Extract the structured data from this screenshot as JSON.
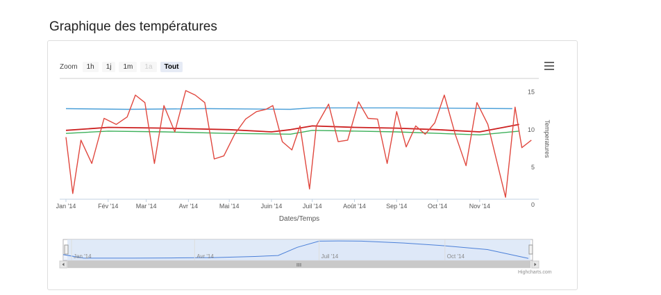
{
  "page": {
    "title": "Graphique des températures"
  },
  "toolbar": {
    "zoom_label": "Zoom",
    "buttons": [
      {
        "label": "1h",
        "state": "normal"
      },
      {
        "label": "1j",
        "state": "normal"
      },
      {
        "label": "1m",
        "state": "normal"
      },
      {
        "label": "1a",
        "state": "disabled"
      },
      {
        "label": "Tout",
        "state": "active"
      }
    ],
    "menu_icon": "hamburger-menu-icon"
  },
  "chart_data": {
    "type": "line",
    "title": "",
    "xlabel": "Dates/Temps",
    "ylabel": "Temperatures",
    "x_range": [
      "2014-01-01",
      "2014-11-30"
    ],
    "ylim": [
      0,
      17
    ],
    "y_ticks": [
      0,
      5,
      10,
      15
    ],
    "x_ticks": [
      {
        "date": "2014-01-01",
        "label": "Jan '14"
      },
      {
        "date": "2014-02-01",
        "label": "Fév '14"
      },
      {
        "date": "2014-03-01",
        "label": "Mar '14"
      },
      {
        "date": "2014-04-01",
        "label": "Avr '14"
      },
      {
        "date": "2014-05-01",
        "label": "Mai '14"
      },
      {
        "date": "2014-06-01",
        "label": "Juin '14"
      },
      {
        "date": "2014-07-01",
        "label": "Juil '14"
      },
      {
        "date": "2014-08-01",
        "label": "Août '14"
      },
      {
        "date": "2014-09-01",
        "label": "Sep '14"
      },
      {
        "date": "2014-10-01",
        "label": "Oct '14"
      },
      {
        "date": "2014-11-01",
        "label": "Nov '14"
      }
    ],
    "grid": false,
    "legend": "none",
    "series": [
      {
        "color": "#4a9fd8",
        "points": [
          [
            "2014-01-01",
            12.8
          ],
          [
            "2014-02-15",
            12.7
          ],
          [
            "2014-04-15",
            12.8
          ],
          [
            "2014-06-15",
            12.7
          ],
          [
            "2014-07-01",
            12.9
          ],
          [
            "2014-09-01",
            12.9
          ],
          [
            "2014-11-25",
            12.8
          ]
        ]
      },
      {
        "color": "#cc1f1f",
        "points": [
          [
            "2014-01-01",
            9.9
          ],
          [
            "2014-02-01",
            10.3
          ],
          [
            "2014-03-15",
            10.2
          ],
          [
            "2014-05-01",
            10.0
          ],
          [
            "2014-06-01",
            9.7
          ],
          [
            "2014-06-15",
            10.0
          ],
          [
            "2014-07-01",
            10.5
          ],
          [
            "2014-08-01",
            10.3
          ],
          [
            "2014-09-01",
            10.2
          ],
          [
            "2014-10-01",
            10.0
          ],
          [
            "2014-11-01",
            9.7
          ],
          [
            "2014-11-30",
            10.7
          ]
        ]
      },
      {
        "color": "#3cb05a",
        "points": [
          [
            "2014-01-01",
            9.5
          ],
          [
            "2014-02-01",
            9.8
          ],
          [
            "2014-03-15",
            9.7
          ],
          [
            "2014-05-01",
            9.5
          ],
          [
            "2014-06-15",
            9.4
          ],
          [
            "2014-07-01",
            9.9
          ],
          [
            "2014-09-01",
            9.7
          ],
          [
            "2014-11-01",
            9.3
          ],
          [
            "2014-11-30",
            9.8
          ]
        ]
      },
      {
        "color": "#e0473e",
        "points": [
          [
            "2014-01-01",
            9.0
          ],
          [
            "2014-01-06",
            1.5
          ],
          [
            "2014-01-12",
            8.6
          ],
          [
            "2014-01-20",
            5.5
          ],
          [
            "2014-01-29",
            11.5
          ],
          [
            "2014-02-07",
            10.7
          ],
          [
            "2014-02-15",
            11.7
          ],
          [
            "2014-02-21",
            14.6
          ],
          [
            "2014-02-28",
            13.6
          ],
          [
            "2014-03-07",
            5.5
          ],
          [
            "2014-03-14",
            13.2
          ],
          [
            "2014-03-22",
            9.7
          ],
          [
            "2014-03-30",
            15.2
          ],
          [
            "2014-04-06",
            14.6
          ],
          [
            "2014-04-13",
            13.6
          ],
          [
            "2014-04-20",
            6.1
          ],
          [
            "2014-04-27",
            6.5
          ],
          [
            "2014-05-05",
            9.4
          ],
          [
            "2014-05-13",
            11.4
          ],
          [
            "2014-05-21",
            12.4
          ],
          [
            "2014-05-28",
            12.7
          ],
          [
            "2014-06-02",
            13.2
          ],
          [
            "2014-06-09",
            8.4
          ],
          [
            "2014-06-16",
            7.3
          ],
          [
            "2014-06-22",
            10.5
          ],
          [
            "2014-06-29",
            2.1
          ],
          [
            "2014-07-04",
            10.5
          ],
          [
            "2014-07-13",
            13.4
          ],
          [
            "2014-07-20",
            8.4
          ],
          [
            "2014-07-27",
            8.6
          ],
          [
            "2014-08-04",
            13.7
          ],
          [
            "2014-08-11",
            11.5
          ],
          [
            "2014-08-18",
            11.4
          ],
          [
            "2014-08-25",
            5.5
          ],
          [
            "2014-09-01",
            12.4
          ],
          [
            "2014-09-08",
            7.7
          ],
          [
            "2014-09-15",
            10.5
          ],
          [
            "2014-09-22",
            9.4
          ],
          [
            "2014-09-29",
            10.9
          ],
          [
            "2014-10-06",
            14.6
          ],
          [
            "2014-10-14",
            9.4
          ],
          [
            "2014-10-22",
            5.2
          ],
          [
            "2014-10-30",
            13.6
          ],
          [
            "2014-11-07",
            10.7
          ],
          [
            "2014-11-20",
            1.0
          ],
          [
            "2014-11-27",
            13.0
          ],
          [
            "2014-12-02",
            7.6
          ],
          [
            "2014-12-09",
            8.6
          ]
        ]
      }
    ],
    "navigator": {
      "x_ticks": [
        {
          "date": "2014-01-01",
          "label": "Jan '14"
        },
        {
          "date": "2014-04-01",
          "label": "Avr '14"
        },
        {
          "date": "2014-07-01",
          "label": "Juil '14"
        },
        {
          "date": "2014-10-01",
          "label": "Oct '14"
        }
      ],
      "color": "#4a7fd8",
      "fill": "#dbe6f7",
      "points": [
        [
          "2013-12-01",
          5.5
        ],
        [
          "2013-12-25",
          2.4
        ],
        [
          "2014-01-10",
          0.4
        ],
        [
          "2014-02-15",
          0.4
        ],
        [
          "2014-03-15",
          0.5
        ],
        [
          "2014-04-15",
          0.7
        ],
        [
          "2014-05-15",
          1.3
        ],
        [
          "2014-06-01",
          1.8
        ],
        [
          "2014-06-15",
          6.2
        ],
        [
          "2014-07-01",
          9.5
        ],
        [
          "2014-07-15",
          9.6
        ],
        [
          "2014-08-01",
          9.5
        ],
        [
          "2014-09-01",
          8.5
        ],
        [
          "2014-10-01",
          7.0
        ],
        [
          "2014-11-01",
          5.0
        ],
        [
          "2014-12-01",
          0.3
        ]
      ]
    }
  },
  "credits": "Highcharts.com"
}
